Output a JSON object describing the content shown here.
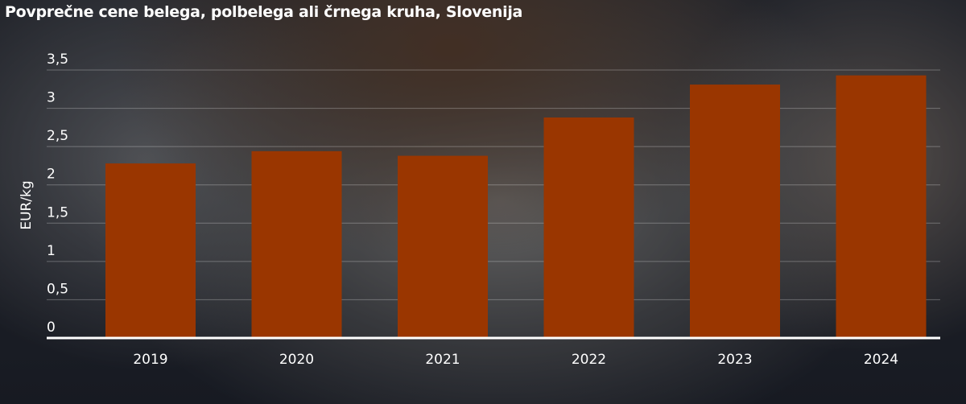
{
  "chart_data": {
    "type": "bar",
    "title": "Povprečne cene belega, polbelega ali črnega kruha, Slovenija",
    "xlabel": "",
    "ylabel": "EUR/kg",
    "categories": [
      "2019",
      "2020",
      "2021",
      "2022",
      "2023",
      "2024"
    ],
    "values": [
      2.28,
      2.44,
      2.38,
      2.88,
      3.31,
      3.43
    ],
    "ylim": [
      0,
      3.5
    ],
    "yticks": [
      0,
      0.5,
      1,
      1.5,
      2,
      2.5,
      3,
      3.5
    ],
    "ytick_labels": [
      "0",
      "0,5",
      "1",
      "1,5",
      "2",
      "2,5",
      "3",
      "3,5"
    ],
    "grid": true,
    "bar_color": "#9a3600"
  }
}
